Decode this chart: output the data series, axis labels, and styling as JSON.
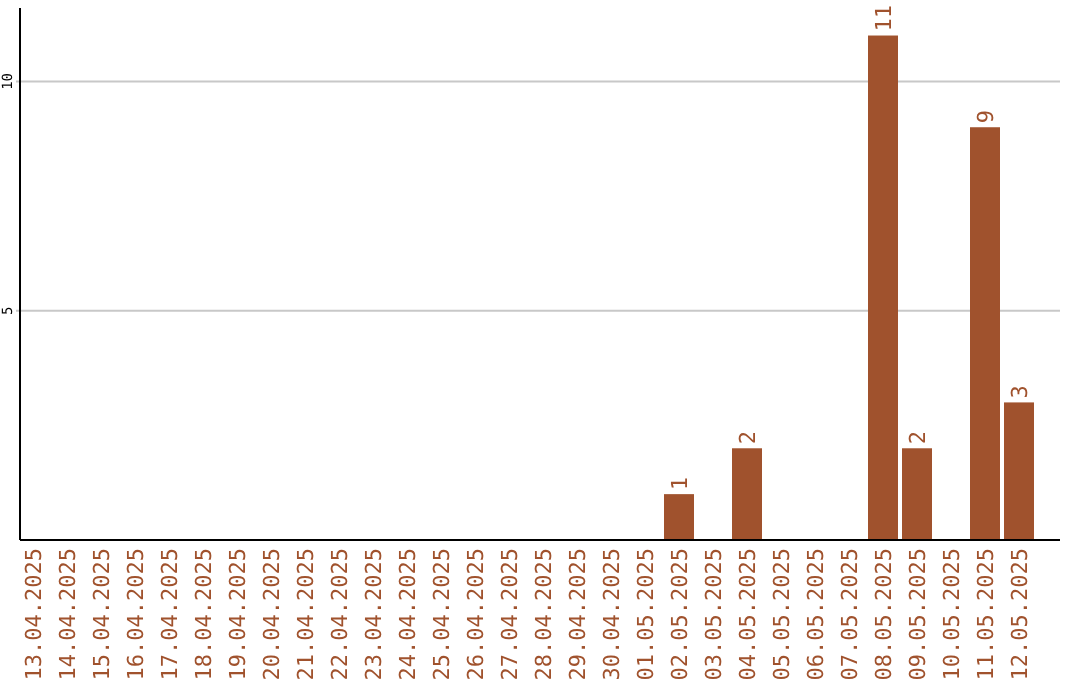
{
  "chart_data": {
    "type": "bar",
    "categories": [
      "13.04.2025",
      "14.04.2025",
      "15.04.2025",
      "16.04.2025",
      "17.04.2025",
      "18.04.2025",
      "19.04.2025",
      "20.04.2025",
      "21.04.2025",
      "22.04.2025",
      "23.04.2025",
      "24.04.2025",
      "25.04.2025",
      "26.04.2025",
      "27.04.2025",
      "28.04.2025",
      "29.04.2025",
      "30.04.2025",
      "01.05.2025",
      "02.05.2025",
      "03.05.2025",
      "04.05.2025",
      "05.05.2025",
      "06.05.2025",
      "07.05.2025",
      "08.05.2025",
      "09.05.2025",
      "10.05.2025",
      "11.05.2025",
      "12.05.2025"
    ],
    "values": [
      0,
      0,
      0,
      0,
      0,
      0,
      0,
      0,
      0,
      0,
      0,
      0,
      0,
      0,
      0,
      0,
      0,
      0,
      0,
      1,
      0,
      2,
      0,
      0,
      0,
      11,
      2,
      0,
      9,
      3
    ],
    "value_labels": [
      null,
      null,
      null,
      null,
      null,
      null,
      null,
      null,
      null,
      null,
      null,
      null,
      null,
      null,
      null,
      null,
      null,
      null,
      null,
      "1",
      null,
      "2",
      null,
      null,
      null,
      "11",
      "2",
      null,
      "9",
      "3"
    ],
    "color": "#a0522d",
    "ylim": [
      0,
      11.6
    ],
    "yticks": [
      5,
      10
    ],
    "grid": "y"
  }
}
